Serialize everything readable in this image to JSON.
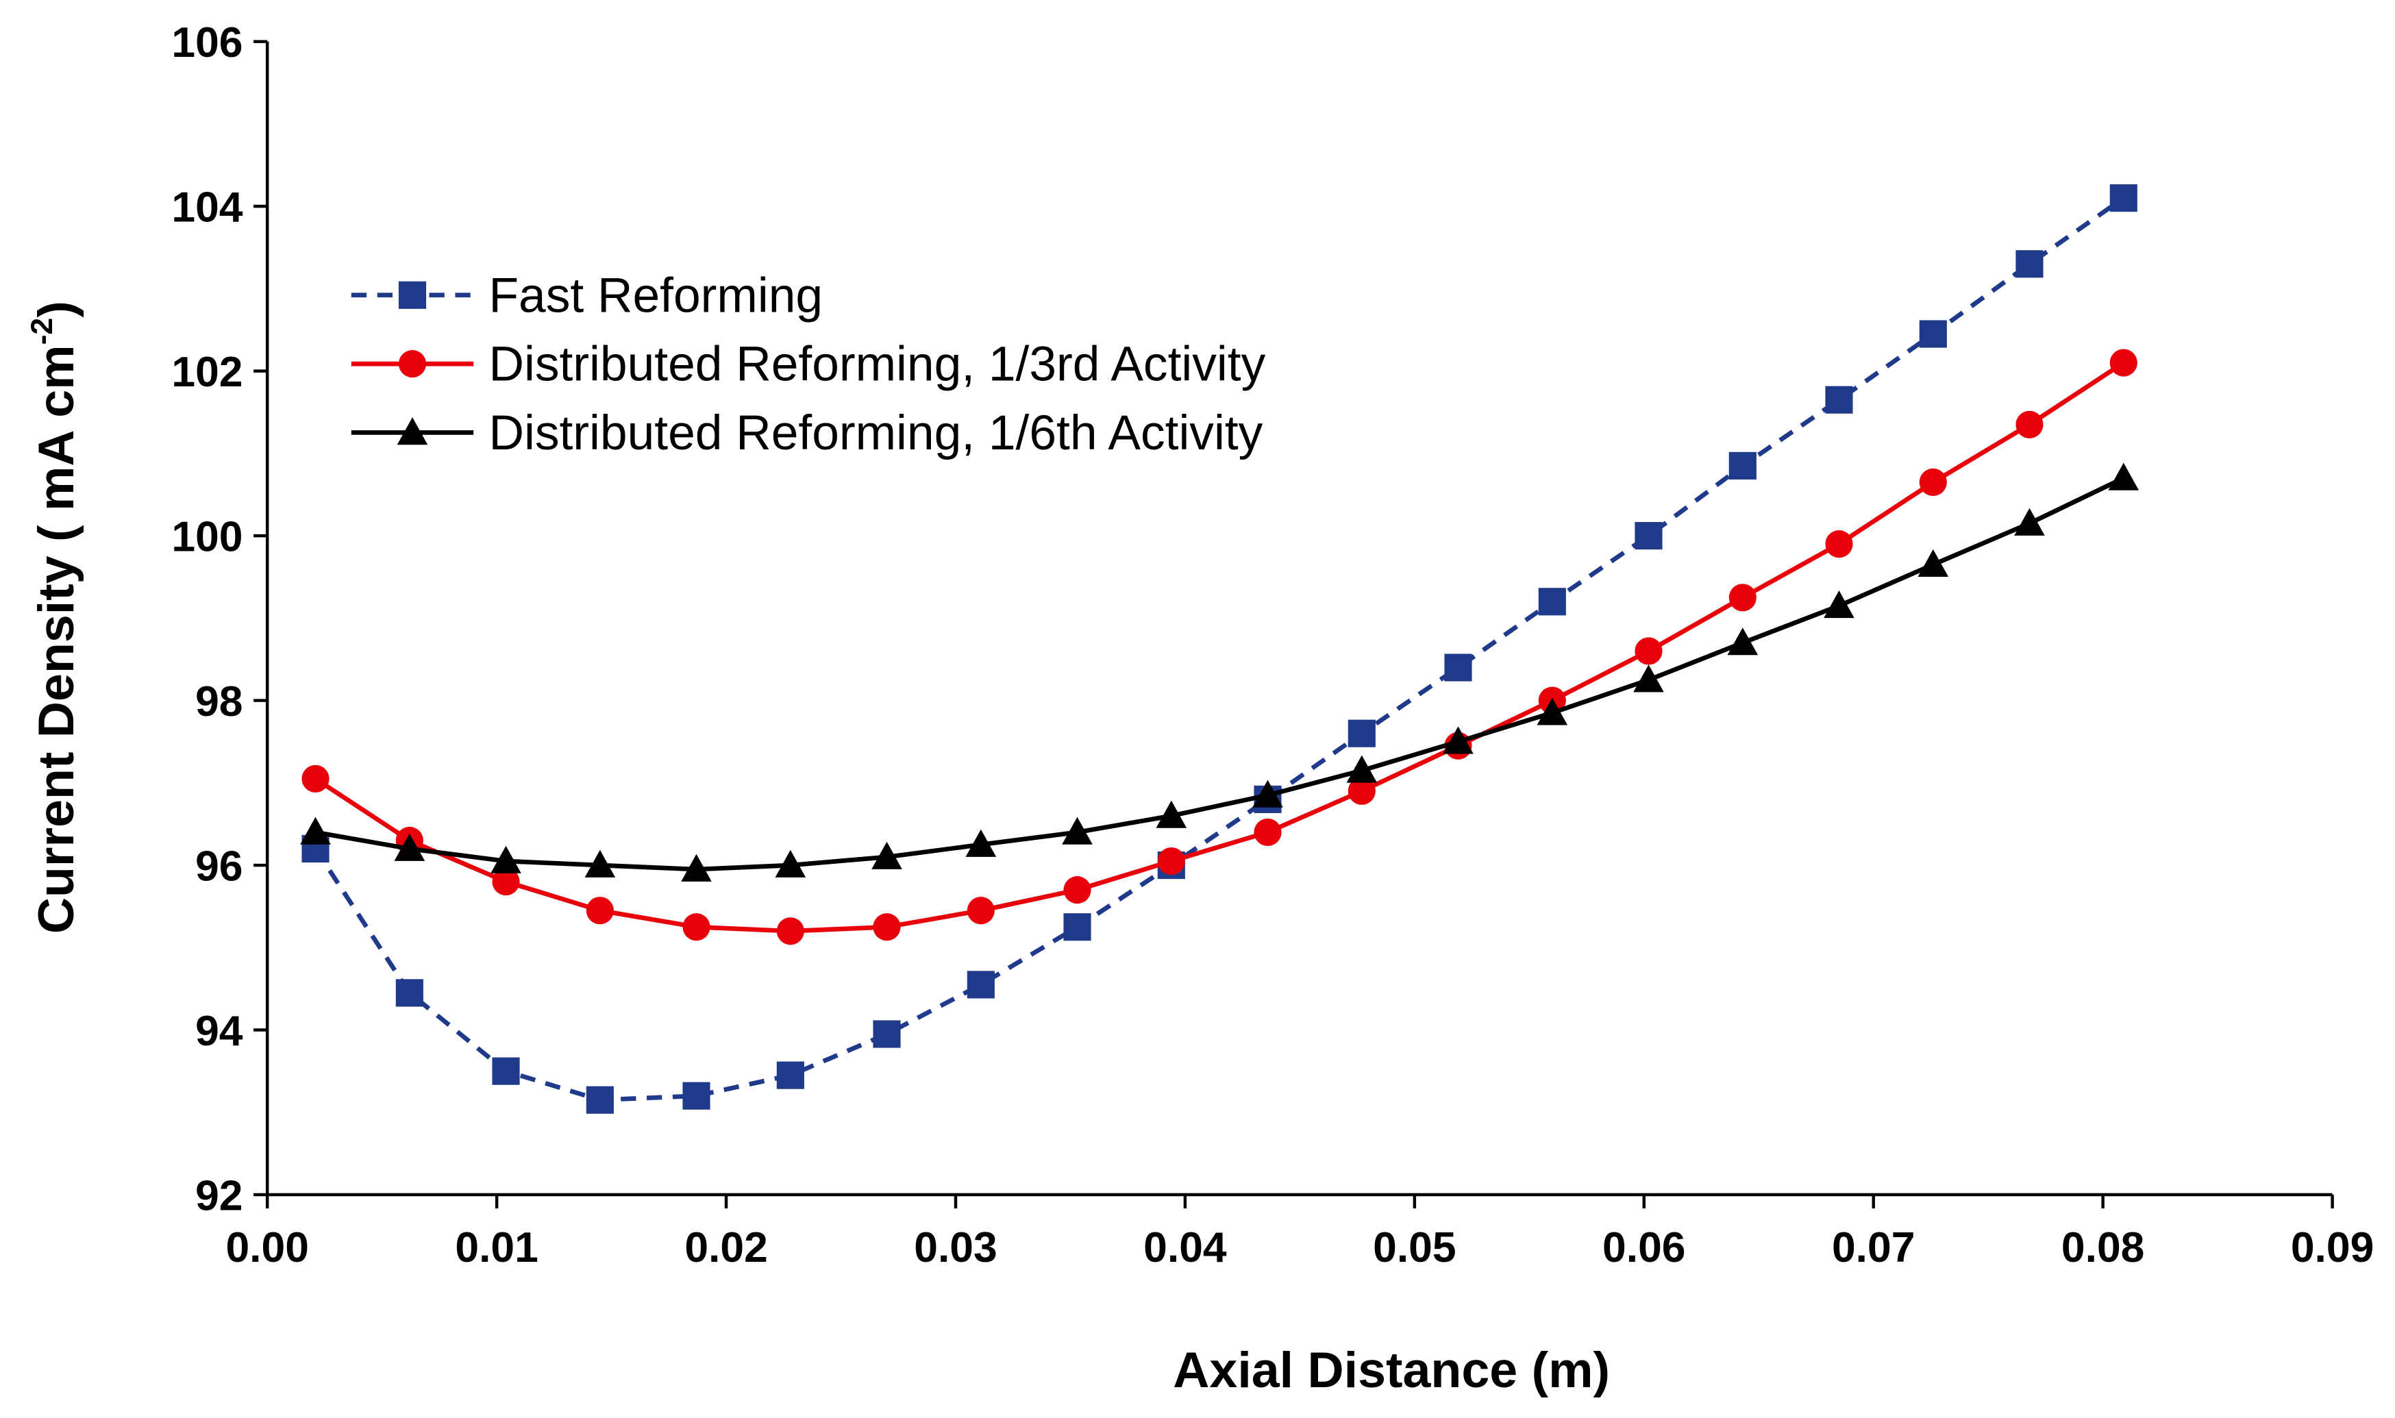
{
  "chart_data": {
    "type": "line",
    "x_label": "Axial Distance (m)",
    "y_label": [
      "Current Density  ( mA cm",
      "-2",
      ")"
    ],
    "x": [
      0.0021,
      0.0062,
      0.0104,
      0.0145,
      0.0187,
      0.0228,
      0.027,
      0.0311,
      0.0353,
      0.0394,
      0.0436,
      0.0477,
      0.0519,
      0.056,
      0.0602,
      0.0643,
      0.0685,
      0.0726,
      0.0768,
      0.0809
    ],
    "series": [
      {
        "name": "Fast Reforming",
        "color": "#1f3a8a",
        "dash": true,
        "marker": "square",
        "values": [
          96.2,
          94.45,
          93.5,
          93.15,
          93.2,
          93.45,
          93.95,
          94.55,
          95.25,
          96.0,
          96.8,
          97.6,
          98.4,
          99.2,
          100.0,
          100.85,
          101.65,
          102.45,
          103.3,
          104.1
        ]
      },
      {
        "name": "Distributed Reforming, 1/3rd Activity",
        "color": "#e8000b",
        "dash": false,
        "marker": "circle",
        "values": [
          97.05,
          96.3,
          95.8,
          95.45,
          95.25,
          95.2,
          95.25,
          95.45,
          95.7,
          96.05,
          96.4,
          96.9,
          97.45,
          98.0,
          98.6,
          99.25,
          99.9,
          100.65,
          101.35,
          102.1
        ]
      },
      {
        "name": "Distributed Reforming, 1/6th Activity",
        "color": "#000000",
        "dash": false,
        "marker": "triangle",
        "values": [
          96.4,
          96.2,
          96.05,
          96.0,
          95.95,
          96.0,
          96.1,
          96.25,
          96.4,
          96.6,
          96.85,
          97.15,
          97.5,
          97.85,
          98.25,
          98.7,
          99.15,
          99.65,
          100.15,
          100.7
        ]
      }
    ],
    "xlim": [
      0,
      0.09
    ],
    "xticks": [
      {
        "value": 0,
        "label": "0.00"
      },
      0.01,
      0.02,
      0.03,
      0.04,
      0.05,
      0.06,
      0.07,
      0.08,
      0.09
    ],
    "ylim": [
      92,
      106
    ],
    "yticks": [
      92,
      94,
      96,
      98,
      100,
      102,
      104,
      106
    ],
    "grid": false,
    "legend": "upper-left"
  }
}
